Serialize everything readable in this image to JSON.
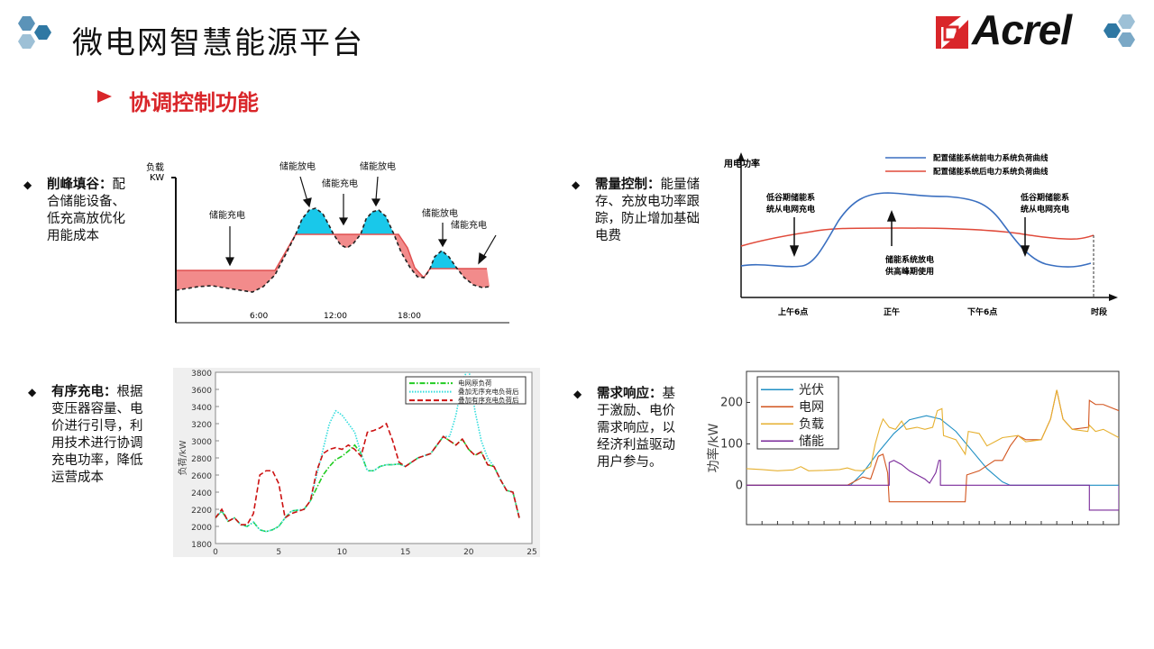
{
  "header": {
    "title": "微电网智慧能源平台",
    "logo_text": "Acrel",
    "accent": "#d9262a",
    "hex_colors": [
      "#5b93b8",
      "#2f78a3",
      "#9dc0d6"
    ]
  },
  "section": {
    "title": "协调控制功能"
  },
  "bullets": [
    {
      "bold": "削峰填谷：",
      "text": "配合储能设备、低充高放优化用能成本"
    },
    {
      "bold": "需量控制：",
      "text": "能量储存、充放电功率跟踪，防止增加基础电费"
    },
    {
      "bold": "有序充电：",
      "text": "根据变压器容量、电价进行引导，利用技术进行协调充电功率，降低运营成本"
    },
    {
      "bold": "需求响应：",
      "text": "基于激励、电价需求响应，以经济利益驱动用户参与。"
    }
  ],
  "peak_chart": {
    "ylabel_1": "负载",
    "ylabel_2": "KW",
    "ticks": [
      "6:00",
      "12:00",
      "18:00"
    ],
    "labels": [
      "储能充电",
      "储能放电",
      "储能充电",
      "储能放电",
      "储能放电",
      "储能充电"
    ]
  },
  "demand_chart": {
    "ylabel": "用电功率",
    "legend": [
      "配置储能系统前电力系统负荷曲线",
      "配置储能系统后电力系统负荷曲线"
    ],
    "notes": {
      "left_1": "低谷期储能系",
      "left_2": "统从电网充电",
      "mid_1": "储能系统放电",
      "mid_2": "供高峰期使用",
      "right_1": "低谷期储能系",
      "right_2": "统从电网充电"
    },
    "ticks": [
      "上午6点",
      "正午",
      "下午6点"
    ],
    "xlabel": "时段"
  },
  "chart_data": [
    {
      "type": "line",
      "ylabel": "负荷/kW",
      "xlim": [
        0,
        25
      ],
      "ylim": [
        1800,
        3800
      ],
      "xticks": [
        0,
        5,
        10,
        15,
        20,
        25
      ],
      "yticks": [
        1800,
        2000,
        2200,
        2400,
        2600,
        2800,
        3000,
        3200,
        3400,
        3600,
        3800
      ],
      "legend": "top-right",
      "series": [
        {
          "name": "电网原负荷",
          "color": "#22cc22",
          "style": "dashdot",
          "points": [
            [
              0,
              2100
            ],
            [
              0.5,
              2180
            ],
            [
              1,
              2060
            ],
            [
              1.5,
              2100
            ],
            [
              2,
              2020
            ],
            [
              2.5,
              2000
            ],
            [
              3,
              2050
            ],
            [
              3.5,
              1960
            ],
            [
              4,
              1940
            ],
            [
              4.5,
              1960
            ],
            [
              5,
              2000
            ],
            [
              5.5,
              2100
            ],
            [
              6,
              2180
            ],
            [
              7,
              2200
            ],
            [
              7.5,
              2300
            ],
            [
              8,
              2450
            ],
            [
              8.5,
              2600
            ],
            [
              9,
              2700
            ],
            [
              9.5,
              2780
            ],
            [
              10,
              2820
            ],
            [
              10.5,
              2880
            ],
            [
              11,
              2950
            ],
            [
              11.5,
              2850
            ],
            [
              12,
              2650
            ],
            [
              12.5,
              2650
            ],
            [
              13,
              2700
            ],
            [
              13.5,
              2720
            ],
            [
              14,
              2720
            ],
            [
              14.5,
              2730
            ],
            [
              15,
              2700
            ],
            [
              16,
              2800
            ],
            [
              17,
              2850
            ],
            [
              17.5,
              2950
            ],
            [
              18,
              3050
            ],
            [
              18.5,
              3000
            ],
            [
              19,
              2950
            ],
            [
              19.5,
              3020
            ],
            [
              20,
              2900
            ],
            [
              20.5,
              2830
            ],
            [
              21,
              2870
            ],
            [
              21.5,
              2720
            ],
            [
              22,
              2700
            ],
            [
              22.5,
              2550
            ],
            [
              23,
              2420
            ],
            [
              23.5,
              2400
            ],
            [
              24,
              2100
            ]
          ]
        },
        {
          "name": "叠加无序充电负荷后",
          "color": "#33dddd",
          "style": "dotted",
          "points": [
            [
              0,
              2100
            ],
            [
              0.5,
              2180
            ],
            [
              1,
              2060
            ],
            [
              1.5,
              2100
            ],
            [
              2,
              2020
            ],
            [
              2.5,
              2000
            ],
            [
              3,
              2050
            ],
            [
              3.5,
              1960
            ],
            [
              4,
              1940
            ],
            [
              4.5,
              1960
            ],
            [
              5,
              2000
            ],
            [
              5.5,
              2100
            ],
            [
              6,
              2180
            ],
            [
              7,
              2200
            ],
            [
              7.5,
              2300
            ],
            [
              8,
              2600
            ],
            [
              8.5,
              2900
            ],
            [
              9,
              3200
            ],
            [
              9.5,
              3350
            ],
            [
              10,
              3300
            ],
            [
              10.5,
              3200
            ],
            [
              11,
              3100
            ],
            [
              11.5,
              2850
            ],
            [
              12,
              2650
            ],
            [
              12.5,
              2650
            ],
            [
              13,
              2700
            ],
            [
              13.5,
              2720
            ],
            [
              14,
              2720
            ],
            [
              14.5,
              2730
            ],
            [
              15,
              2700
            ],
            [
              16,
              2800
            ],
            [
              17,
              2850
            ],
            [
              17.5,
              2950
            ],
            [
              18,
              3050
            ],
            [
              18.5,
              3050
            ],
            [
              19,
              3300
            ],
            [
              19.5,
              3700
            ],
            [
              20,
              3850
            ],
            [
              20.5,
              3350
            ],
            [
              21,
              3000
            ],
            [
              21.5,
              2800
            ],
            [
              22,
              2700
            ],
            [
              22.5,
              2550
            ],
            [
              23,
              2420
            ],
            [
              23.5,
              2400
            ],
            [
              24,
              2100
            ]
          ]
        },
        {
          "name": "叠加有序充电负荷后",
          "color": "#cc1111",
          "style": "dashed",
          "points": [
            [
              0,
              2100
            ],
            [
              0.5,
              2200
            ],
            [
              1,
              2060
            ],
            [
              1.5,
              2100
            ],
            [
              2,
              2020
            ],
            [
              2.5,
              2020
            ],
            [
              3,
              2150
            ],
            [
              3.5,
              2600
            ],
            [
              4,
              2650
            ],
            [
              4.5,
              2650
            ],
            [
              5,
              2500
            ],
            [
              5.5,
              2100
            ],
            [
              6,
              2150
            ],
            [
              7,
              2200
            ],
            [
              7.5,
              2300
            ],
            [
              8,
              2650
            ],
            [
              8.5,
              2850
            ],
            [
              9,
              2900
            ],
            [
              9.5,
              2920
            ],
            [
              10,
              2900
            ],
            [
              10.5,
              2950
            ],
            [
              11,
              2900
            ],
            [
              11.5,
              2820
            ],
            [
              12,
              3100
            ],
            [
              12.5,
              3120
            ],
            [
              13,
              3150
            ],
            [
              13.5,
              3200
            ],
            [
              14,
              3000
            ],
            [
              14.5,
              2750
            ],
            [
              15,
              2700
            ],
            [
              16,
              2800
            ],
            [
              17,
              2850
            ],
            [
              17.5,
              2950
            ],
            [
              18,
              3050
            ],
            [
              18.5,
              3000
            ],
            [
              19,
              2950
            ],
            [
              19.5,
              3020
            ],
            [
              20,
              2900
            ],
            [
              20.5,
              2830
            ],
            [
              21,
              2870
            ],
            [
              21.5,
              2720
            ],
            [
              22,
              2700
            ],
            [
              22.5,
              2550
            ],
            [
              23,
              2420
            ],
            [
              23.5,
              2400
            ],
            [
              24,
              2100
            ]
          ]
        }
      ]
    },
    {
      "type": "line",
      "ylabel": "功率/kW",
      "xlim": [
        0,
        24
      ],
      "ylim": [
        -95,
        275
      ],
      "yticks": [
        0,
        100,
        200
      ],
      "legend": "top-left",
      "series": [
        {
          "name": "光伏",
          "color": "#1f8fc4",
          "points": [
            [
              0,
              0
            ],
            [
              6.7,
              0
            ],
            [
              7.5,
              30
            ],
            [
              8.5,
              80
            ],
            [
              9.5,
              125
            ],
            [
              10.5,
              158
            ],
            [
              11.6,
              168
            ],
            [
              12.5,
              160
            ],
            [
              13.5,
              130
            ],
            [
              14.5,
              85
            ],
            [
              15.5,
              40
            ],
            [
              16.5,
              8
            ],
            [
              17,
              0
            ],
            [
              24,
              0
            ]
          ]
        },
        {
          "name": "电网",
          "color": "#d2541e",
          "points": [
            [
              0,
              0
            ],
            [
              6.5,
              0
            ],
            [
              7.5,
              20
            ],
            [
              8,
              15
            ],
            [
              8.5,
              70
            ],
            [
              8.8,
              75
            ],
            [
              9.1,
              30
            ],
            [
              9.2,
              -40
            ],
            [
              14.1,
              -40
            ],
            [
              14.2,
              25
            ],
            [
              15,
              35
            ],
            [
              16,
              60
            ],
            [
              16.5,
              60
            ],
            [
              17,
              95
            ],
            [
              17.5,
              120
            ],
            [
              18,
              110
            ],
            [
              19,
              110
            ],
            [
              19.6,
              160
            ],
            [
              20,
              230
            ],
            [
              20.4,
              160
            ],
            [
              21,
              135
            ],
            [
              22.05,
              140
            ],
            [
              22.1,
              205
            ],
            [
              22.5,
              195
            ],
            [
              23,
              195
            ],
            [
              24,
              180
            ]
          ]
        },
        {
          "name": "负载",
          "color": "#e6b030",
          "points": [
            [
              0,
              40
            ],
            [
              1,
              38
            ],
            [
              2,
              35
            ],
            [
              3,
              37
            ],
            [
              3.5,
              45
            ],
            [
              4,
              35
            ],
            [
              5,
              36
            ],
            [
              6,
              38
            ],
            [
              6.5,
              42
            ],
            [
              7,
              36
            ],
            [
              7.5,
              35
            ],
            [
              8,
              45
            ],
            [
              8.3,
              100
            ],
            [
              8.6,
              140
            ],
            [
              8.8,
              160
            ],
            [
              9.2,
              140
            ],
            [
              9.6,
              135
            ],
            [
              10,
              155
            ],
            [
              10.3,
              135
            ],
            [
              11,
              140
            ],
            [
              11.5,
              135
            ],
            [
              12,
              140
            ],
            [
              12.3,
              180
            ],
            [
              12.6,
              185
            ],
            [
              12.7,
              120
            ],
            [
              13.5,
              110
            ],
            [
              14.1,
              75
            ],
            [
              14.3,
              130
            ],
            [
              15,
              125
            ],
            [
              15.5,
              95
            ],
            [
              16,
              105
            ],
            [
              16.5,
              115
            ],
            [
              17.5,
              120
            ],
            [
              18,
              105
            ],
            [
              19,
              110
            ],
            [
              19.6,
              160
            ],
            [
              20,
              230
            ],
            [
              20.4,
              160
            ],
            [
              21,
              135
            ],
            [
              22,
              130
            ],
            [
              22.1,
              145
            ],
            [
              22.5,
              130
            ],
            [
              23,
              135
            ],
            [
              24,
              115
            ]
          ]
        },
        {
          "name": "储能",
          "color": "#7a2a9a",
          "points": [
            [
              0,
              0
            ],
            [
              9.2,
              0
            ],
            [
              9.2,
              55
            ],
            [
              9.5,
              60
            ],
            [
              10,
              50
            ],
            [
              10.5,
              35
            ],
            [
              11,
              25
            ],
            [
              11.5,
              15
            ],
            [
              11.8,
              5
            ],
            [
              12.2,
              30
            ],
            [
              12.4,
              60
            ],
            [
              12.5,
              60
            ],
            [
              12.5,
              0
            ],
            [
              22.1,
              0
            ],
            [
              22.1,
              -60
            ],
            [
              24,
              -60
            ],
            [
              24,
              0
            ]
          ]
        }
      ]
    }
  ]
}
